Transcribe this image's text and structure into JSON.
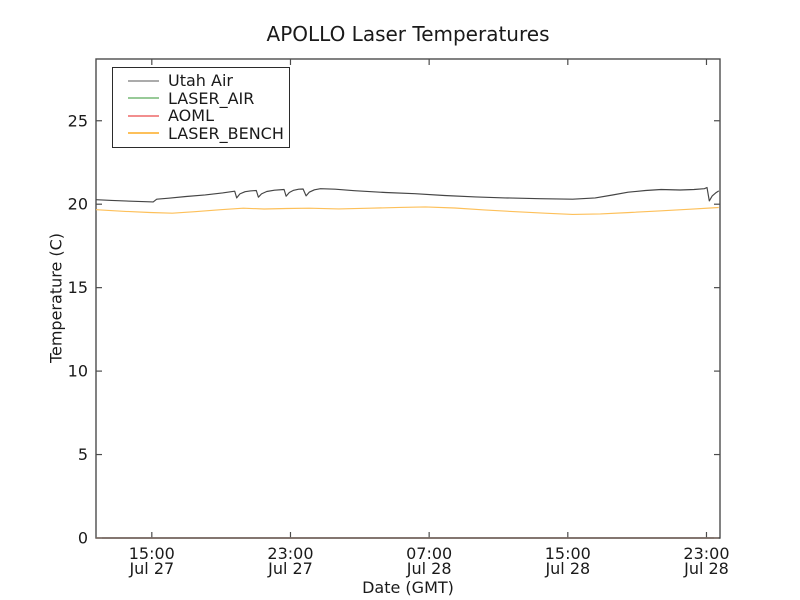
{
  "chart_data": {
    "type": "line",
    "title": "APOLLO Laser Temperatures",
    "xlabel": "Date (GMT)",
    "ylabel": "Temperature (C)",
    "ylim": [
      0,
      28.7
    ],
    "yticks": [
      0,
      5,
      10,
      15,
      20,
      25
    ],
    "x_axis": {
      "span_hours": 36,
      "ticks": [
        {
          "hour": 3.22,
          "time": "15:00",
          "date": "Jul 27"
        },
        {
          "hour": 11.22,
          "time": "23:00",
          "date": "Jul 27"
        },
        {
          "hour": 19.22,
          "time": "07:00",
          "date": "Jul 28"
        },
        {
          "hour": 27.22,
          "time": "15:00",
          "date": "Jul 28"
        },
        {
          "hour": 35.22,
          "time": "23:00",
          "date": "Jul 28"
        }
      ]
    },
    "grid": false,
    "legend": {
      "position": "upper-left"
    },
    "axis_colors": {
      "frame": "#4c4c4c",
      "bottom_axis": "#1a1a1a",
      "text": "#1a1a1a"
    },
    "series": [
      {
        "name": "Utah Air",
        "color": "#454545",
        "legend_color": "#ababab",
        "opacity": 1,
        "points": [
          [
            0,
            20.27
          ],
          [
            0.9,
            20.23
          ],
          [
            2,
            20.18
          ],
          [
            3.3,
            20.14
          ],
          [
            3.5,
            20.3
          ],
          [
            4.2,
            20.36
          ],
          [
            5.2,
            20.46
          ],
          [
            6.3,
            20.56
          ],
          [
            7.3,
            20.68
          ],
          [
            8,
            20.78
          ],
          [
            8.12,
            20.38
          ],
          [
            8.3,
            20.62
          ],
          [
            8.6,
            20.75
          ],
          [
            8.9,
            20.8
          ],
          [
            9.25,
            20.82
          ],
          [
            9.37,
            20.42
          ],
          [
            9.55,
            20.62
          ],
          [
            9.85,
            20.76
          ],
          [
            10.3,
            20.84
          ],
          [
            10.85,
            20.88
          ],
          [
            10.97,
            20.48
          ],
          [
            11.15,
            20.7
          ],
          [
            11.4,
            20.83
          ],
          [
            11.7,
            20.9
          ],
          [
            11.95,
            20.91
          ],
          [
            12.12,
            20.5
          ],
          [
            12.3,
            20.72
          ],
          [
            12.6,
            20.86
          ],
          [
            12.95,
            20.93
          ],
          [
            13.8,
            20.9
          ],
          [
            14.9,
            20.81
          ],
          [
            16.7,
            20.7
          ],
          [
            18.4,
            20.63
          ],
          [
            20.1,
            20.52
          ],
          [
            21.9,
            20.44
          ],
          [
            23.6,
            20.38
          ],
          [
            25.6,
            20.33
          ],
          [
            27.5,
            20.3
          ],
          [
            28.8,
            20.38
          ],
          [
            29.8,
            20.55
          ],
          [
            30.7,
            20.72
          ],
          [
            31.7,
            20.82
          ],
          [
            32.6,
            20.88
          ],
          [
            33.7,
            20.85
          ],
          [
            34.5,
            20.88
          ],
          [
            35.1,
            20.93
          ],
          [
            35.25,
            21
          ],
          [
            35.38,
            20.2
          ],
          [
            35.55,
            20.5
          ],
          [
            35.75,
            20.68
          ],
          [
            35.93,
            20.8
          ]
        ]
      },
      {
        "name": "LASER_AIR",
        "color": "#98ca98",
        "legend_color": "#98ca98",
        "opacity": 0.25,
        "points": [
          [
            0,
            0
          ],
          [
            35.93,
            0
          ]
        ]
      },
      {
        "name": "AOML",
        "color": "#f28e8e",
        "legend_color": "#f28e8e",
        "opacity": 0.3,
        "points": [
          [
            0,
            0
          ],
          [
            35.93,
            0
          ]
        ]
      },
      {
        "name": "LASER_BENCH",
        "color": "#fdc05a",
        "legend_color": "#fdc05a",
        "opacity": 1,
        "points": [
          [
            0,
            19.67
          ],
          [
            1.7,
            19.57
          ],
          [
            3.1,
            19.5
          ],
          [
            4.4,
            19.46
          ],
          [
            5.7,
            19.55
          ],
          [
            7.2,
            19.67
          ],
          [
            8.5,
            19.76
          ],
          [
            9.7,
            19.71
          ],
          [
            11,
            19.74
          ],
          [
            12.3,
            19.76
          ],
          [
            14,
            19.72
          ],
          [
            15.8,
            19.76
          ],
          [
            17.5,
            19.81
          ],
          [
            19,
            19.84
          ],
          [
            20.7,
            19.77
          ],
          [
            22.4,
            19.66
          ],
          [
            24.2,
            19.55
          ],
          [
            25.9,
            19.46
          ],
          [
            27.5,
            19.39
          ],
          [
            29.1,
            19.42
          ],
          [
            30.8,
            19.5
          ],
          [
            32.5,
            19.6
          ],
          [
            34.3,
            19.7
          ],
          [
            35.93,
            19.8
          ]
        ]
      }
    ]
  }
}
